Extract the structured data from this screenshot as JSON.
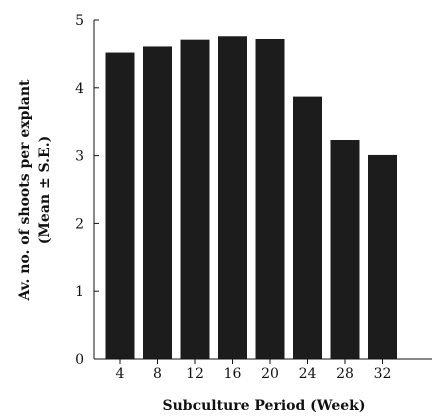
{
  "chart_data": {
    "type": "bar",
    "categories": [
      "4",
      "8",
      "12",
      "16",
      "20",
      "24",
      "28",
      "32"
    ],
    "values": [
      4.52,
      4.61,
      4.71,
      4.76,
      4.72,
      3.87,
      3.23,
      3.01
    ],
    "title": "",
    "xlabel": "Subculture Period (Week)",
    "ylabel_line1": "Av. no. of shoots per explant",
    "ylabel_line2": "(Mean ± S.E.)",
    "ylim": [
      0,
      5
    ],
    "yticks": [
      "0",
      "1",
      "2",
      "3",
      "4",
      "5"
    ],
    "grid": false,
    "bar_color": "#1c1c1c"
  }
}
